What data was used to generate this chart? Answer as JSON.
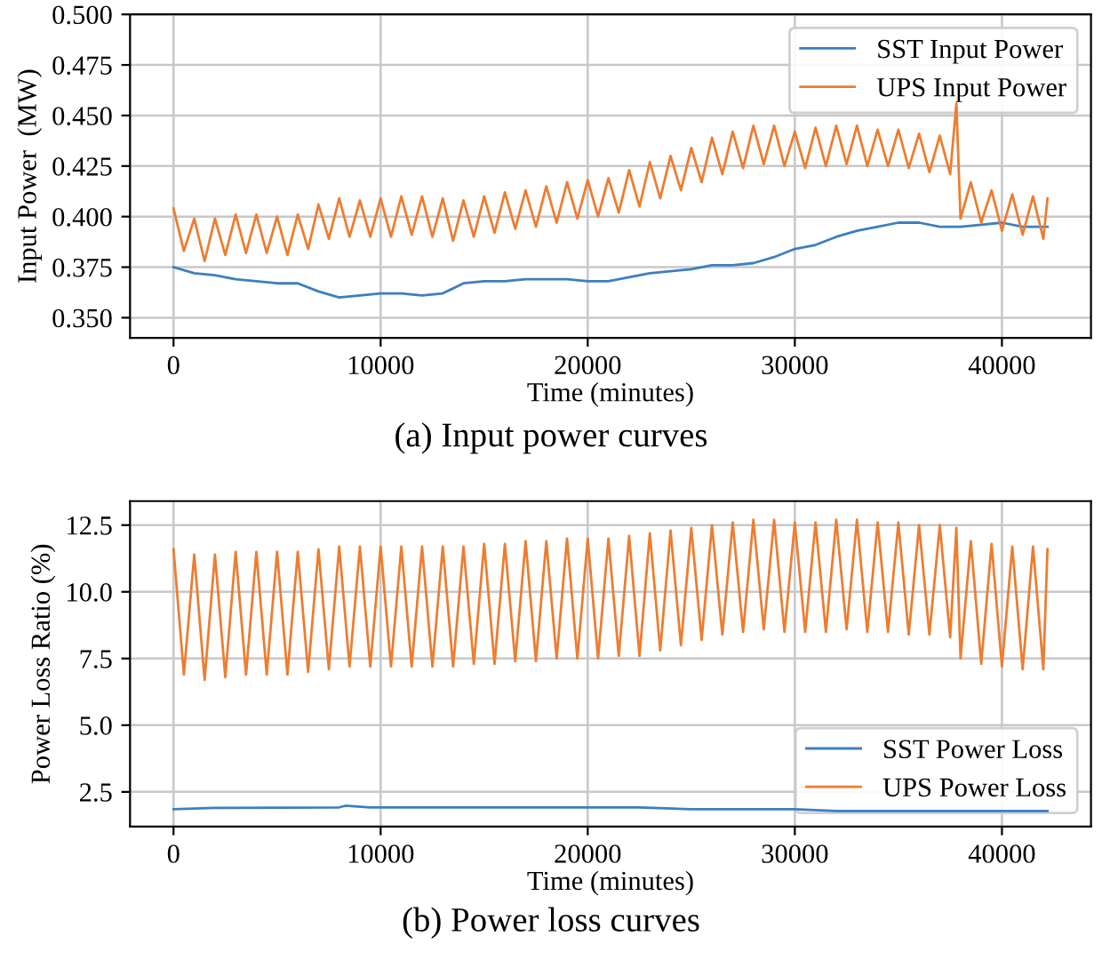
{
  "chart_data": [
    {
      "type": "line",
      "xlabel": "Time (minutes)",
      "ylabel": "Input Power  (MW)",
      "annotations": [
        "(a) Input power curves"
      ],
      "xlim": [
        -2100,
        44300
      ],
      "xticks": [
        0,
        10000,
        20000,
        30000,
        40000
      ],
      "ylim": [
        0.34,
        0.5
      ],
      "yticks": [
        {
          "value": 0.35,
          "label": "0.350"
        },
        0.375,
        {
          "value": 0.4,
          "label": "0.400"
        },
        0.425,
        {
          "value": 0.45,
          "label": "0.450"
        },
        0.475,
        {
          "value": 0.5,
          "label": "0.500"
        }
      ],
      "grid": true,
      "legend": "top right",
      "line_style": "solid",
      "marker": "none",
      "series": [
        {
          "name": "SST Input Power",
          "color": "#3c7fc0",
          "x": [
            0,
            1000,
            2000,
            3000,
            4000,
            5000,
            6000,
            7000,
            8000,
            9000,
            10000,
            11000,
            12000,
            13000,
            14000,
            15000,
            16000,
            17000,
            18000,
            19000,
            20000,
            21000,
            22000,
            23000,
            24000,
            25000,
            26000,
            27000,
            28000,
            29000,
            30000,
            31000,
            32000,
            33000,
            34000,
            35000,
            36000,
            37000,
            38000,
            39000,
            40000,
            41000,
            42000,
            42200
          ],
          "values": [
            0.375,
            0.372,
            0.371,
            0.369,
            0.368,
            0.367,
            0.367,
            0.363,
            0.36,
            0.361,
            0.362,
            0.362,
            0.361,
            0.362,
            0.367,
            0.368,
            0.368,
            0.369,
            0.369,
            0.369,
            0.368,
            0.368,
            0.37,
            0.372,
            0.373,
            0.374,
            0.376,
            0.376,
            0.377,
            0.38,
            0.384,
            0.386,
            0.39,
            0.393,
            0.395,
            0.397,
            0.397,
            0.395,
            0.395,
            0.396,
            0.397,
            0.395,
            0.395,
            0.395
          ]
        },
        {
          "name": "UPS Input Power",
          "color": "#ed7d31",
          "x": [
            0,
            500,
            1000,
            1500,
            2000,
            2500,
            3000,
            3500,
            4000,
            4500,
            5000,
            5500,
            6000,
            6500,
            7000,
            7500,
            8000,
            8500,
            9000,
            9500,
            10000,
            10500,
            11000,
            11500,
            12000,
            12500,
            13000,
            13500,
            14000,
            14500,
            15000,
            15500,
            16000,
            16500,
            17000,
            17500,
            18000,
            18500,
            19000,
            19500,
            20000,
            20500,
            21000,
            21500,
            22000,
            22500,
            23000,
            23500,
            24000,
            24500,
            25000,
            25500,
            26000,
            26500,
            27000,
            27500,
            28000,
            28500,
            29000,
            29500,
            30000,
            30500,
            31000,
            31500,
            32000,
            32500,
            33000,
            33500,
            34000,
            34500,
            35000,
            35500,
            36000,
            36500,
            37000,
            37500,
            37800,
            38000,
            38500,
            39000,
            39500,
            40000,
            40500,
            41000,
            41500,
            42000,
            42200
          ],
          "values": [
            0.404,
            0.383,
            0.399,
            0.378,
            0.399,
            0.381,
            0.401,
            0.382,
            0.401,
            0.382,
            0.4,
            0.381,
            0.401,
            0.384,
            0.406,
            0.389,
            0.409,
            0.39,
            0.408,
            0.39,
            0.409,
            0.39,
            0.41,
            0.391,
            0.41,
            0.39,
            0.409,
            0.388,
            0.408,
            0.39,
            0.41,
            0.392,
            0.412,
            0.394,
            0.413,
            0.395,
            0.415,
            0.397,
            0.417,
            0.399,
            0.418,
            0.4,
            0.419,
            0.402,
            0.423,
            0.405,
            0.427,
            0.409,
            0.43,
            0.413,
            0.434,
            0.417,
            0.439,
            0.421,
            0.442,
            0.424,
            0.445,
            0.426,
            0.445,
            0.425,
            0.442,
            0.424,
            0.444,
            0.425,
            0.445,
            0.426,
            0.445,
            0.425,
            0.443,
            0.425,
            0.443,
            0.424,
            0.441,
            0.422,
            0.44,
            0.421,
            0.456,
            0.399,
            0.417,
            0.397,
            0.413,
            0.393,
            0.411,
            0.391,
            0.41,
            0.389,
            0.409
          ]
        }
      ]
    },
    {
      "type": "line",
      "xlabel": "Time (minutes)",
      "ylabel": "Power Loss Ratio (%)",
      "annotations": [
        "(b) Power loss curves"
      ],
      "xlim": [
        -2100,
        44300
      ],
      "xticks": [
        0,
        10000,
        20000,
        30000,
        40000
      ],
      "ylim": [
        1.2,
        13.4
      ],
      "yticks": [
        2.5,
        {
          "value": 5,
          "label": "5.0"
        },
        7.5,
        {
          "value": 10,
          "label": "10.0"
        },
        12.5
      ],
      "grid": true,
      "legend": "bottom right",
      "line_style": "solid",
      "marker": "none",
      "series": [
        {
          "name": "SST Power Loss",
          "color": "#3c7fc0",
          "x": [
            0,
            2000,
            8000,
            8300,
            9500,
            20000,
            22500,
            25000,
            30000,
            32000,
            42200
          ],
          "values": [
            1.85,
            1.9,
            1.92,
            1.98,
            1.92,
            1.92,
            1.92,
            1.85,
            1.85,
            1.78,
            1.78
          ]
        },
        {
          "name": "UPS Power Loss",
          "color": "#ed7d31",
          "x": [
            0,
            500,
            1000,
            1500,
            2000,
            2500,
            3000,
            3500,
            4000,
            4500,
            5000,
            5500,
            6000,
            6500,
            7000,
            7500,
            8000,
            8500,
            9000,
            9500,
            10000,
            10500,
            11000,
            11500,
            12000,
            12500,
            13000,
            13500,
            14000,
            14500,
            15000,
            15500,
            16000,
            16500,
            17000,
            17500,
            18000,
            18500,
            19000,
            19500,
            20000,
            20500,
            21000,
            21500,
            22000,
            22500,
            23000,
            23500,
            24000,
            24500,
            25000,
            25500,
            26000,
            26500,
            27000,
            27500,
            28000,
            28500,
            29000,
            29500,
            30000,
            30500,
            31000,
            31500,
            32000,
            32500,
            33000,
            33500,
            34000,
            34500,
            35000,
            35500,
            36000,
            36500,
            37000,
            37500,
            37800,
            38000,
            38500,
            39000,
            39500,
            40000,
            40500,
            41000,
            41500,
            42000,
            42200
          ],
          "values": [
            11.6,
            6.9,
            11.4,
            6.7,
            11.4,
            6.8,
            11.5,
            6.9,
            11.5,
            6.9,
            11.5,
            6.9,
            11.5,
            7.0,
            11.6,
            7.1,
            11.7,
            7.2,
            11.7,
            7.2,
            11.7,
            7.2,
            11.7,
            7.2,
            11.7,
            7.2,
            11.7,
            7.2,
            11.7,
            7.3,
            11.8,
            7.3,
            11.8,
            7.4,
            11.9,
            7.4,
            11.9,
            7.5,
            12.0,
            7.5,
            12.0,
            7.5,
            12.0,
            7.6,
            12.1,
            7.6,
            12.2,
            7.8,
            12.3,
            8.0,
            12.4,
            8.2,
            12.5,
            8.4,
            12.6,
            8.5,
            12.7,
            8.6,
            12.7,
            8.5,
            12.6,
            8.5,
            12.6,
            8.5,
            12.7,
            8.6,
            12.7,
            8.5,
            12.6,
            8.5,
            12.6,
            8.4,
            12.5,
            8.4,
            12.5,
            8.3,
            12.4,
            7.5,
            11.9,
            7.3,
            11.8,
            7.2,
            11.7,
            7.1,
            11.7,
            7.1,
            11.6
          ]
        }
      ]
    }
  ]
}
